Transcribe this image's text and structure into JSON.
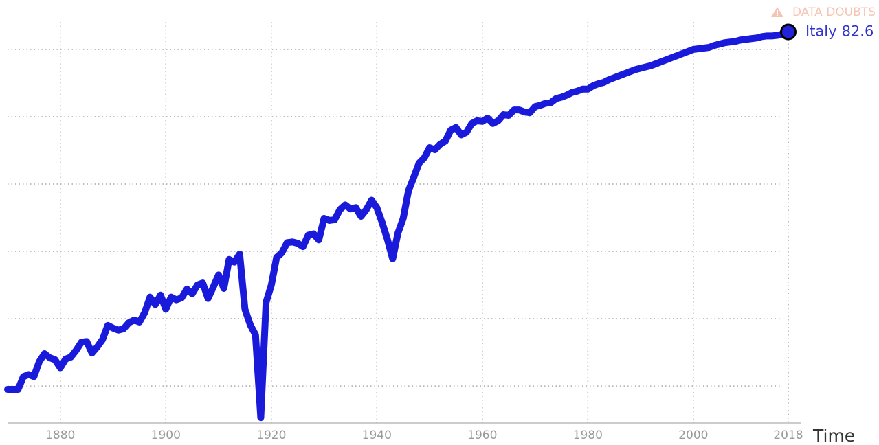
{
  "chart_data": {
    "type": "line",
    "annotation": "DATA DOUBTS",
    "x_label": "Time",
    "x": [
      1870,
      1871,
      1872,
      1873,
      1874,
      1875,
      1876,
      1877,
      1878,
      1879,
      1880,
      1881,
      1882,
      1883,
      1884,
      1885,
      1886,
      1887,
      1888,
      1889,
      1890,
      1891,
      1892,
      1893,
      1894,
      1895,
      1896,
      1897,
      1898,
      1899,
      1900,
      1901,
      1902,
      1903,
      1904,
      1905,
      1906,
      1907,
      1908,
      1909,
      1910,
      1911,
      1912,
      1913,
      1914,
      1915,
      1916,
      1917,
      1918,
      1919,
      1920,
      1921,
      1922,
      1923,
      1924,
      1925,
      1926,
      1927,
      1928,
      1929,
      1930,
      1931,
      1932,
      1933,
      1934,
      1935,
      1936,
      1937,
      1938,
      1939,
      1940,
      1941,
      1942,
      1943,
      1944,
      1945,
      1946,
      1947,
      1948,
      1949,
      1950,
      1951,
      1952,
      1953,
      1954,
      1955,
      1956,
      1957,
      1958,
      1959,
      1960,
      1961,
      1962,
      1963,
      1964,
      1965,
      1966,
      1967,
      1968,
      1969,
      1970,
      1971,
      1972,
      1973,
      1974,
      1975,
      1976,
      1977,
      1978,
      1979,
      1980,
      1981,
      1982,
      1983,
      1984,
      1985,
      1986,
      1987,
      1988,
      1989,
      1990,
      1991,
      1992,
      1993,
      1994,
      1995,
      1996,
      1997,
      1998,
      1999,
      2000,
      2001,
      2002,
      2003,
      2004,
      2005,
      2006,
      2007,
      2008,
      2009,
      2010,
      2011,
      2012,
      2013,
      2014,
      2015,
      2016,
      2017,
      2018
    ],
    "series": [
      {
        "name": "Italy",
        "color": "#1a1adb",
        "values": [
          29.5,
          29.5,
          29.5,
          31.4,
          31.7,
          31.4,
          33.6,
          34.8,
          34.2,
          33.9,
          32.7,
          34.0,
          34.3,
          35.3,
          36.5,
          36.6,
          34.9,
          35.8,
          36.9,
          39.0,
          38.6,
          38.3,
          38.5,
          39.4,
          39.8,
          39.5,
          40.9,
          43.2,
          42.1,
          43.5,
          41.4,
          43.2,
          42.8,
          43.1,
          44.4,
          43.7,
          45.0,
          45.3,
          43.0,
          44.7,
          46.5,
          44.5,
          48.8,
          48.4,
          49.6,
          41.4,
          39.1,
          37.6,
          25.3,
          42.4,
          45.0,
          49.1,
          49.8,
          51.3,
          51.4,
          51.2,
          50.7,
          52.4,
          52.6,
          51.7,
          54.9,
          54.6,
          54.7,
          56.2,
          56.9,
          56.3,
          56.5,
          55.2,
          56.2,
          57.6,
          56.5,
          54.3,
          51.8,
          48.9,
          52.7,
          54.9,
          59.0,
          61.0,
          63.1,
          63.9,
          65.4,
          65.1,
          65.9,
          66.4,
          68.0,
          68.4,
          67.3,
          67.7,
          69.0,
          69.4,
          69.3,
          69.8,
          69.0,
          69.4,
          70.3,
          70.2,
          71.0,
          71.0,
          70.7,
          70.6,
          71.5,
          71.7,
          72.0,
          72.1,
          72.7,
          72.9,
          73.2,
          73.6,
          73.8,
          74.1,
          74.1,
          74.6,
          74.9,
          75.1,
          75.5,
          75.8,
          76.1,
          76.4,
          76.7,
          77.0,
          77.2,
          77.4,
          77.6,
          77.9,
          78.2,
          78.5,
          78.8,
          79.1,
          79.4,
          79.7,
          80.0,
          80.1,
          80.2,
          80.3,
          80.6,
          80.8,
          81.0,
          81.1,
          81.2,
          81.4,
          81.5,
          81.6,
          81.7,
          81.9,
          82.0,
          82.0,
          82.1,
          82.3,
          82.6
        ]
      }
    ],
    "xlim": [
      1870,
      2018
    ],
    "xticks": [
      1880,
      1900,
      1920,
      1940,
      1960,
      1980,
      2000,
      2018
    ],
    "ylim": [
      24.5,
      85.3
    ],
    "yticks": [
      30,
      40,
      50,
      60,
      70,
      80
    ],
    "grid": true
  }
}
